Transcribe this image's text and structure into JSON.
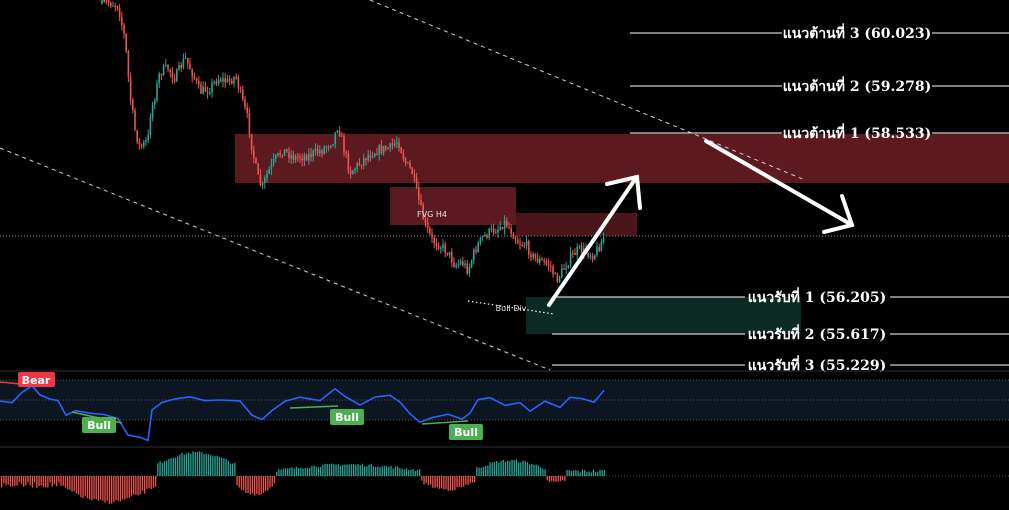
{
  "chart_data": {
    "type": "candlestick",
    "resistance_levels": [
      {
        "label": "แนวต้านที่ 3 (60.023)",
        "value": 60.023
      },
      {
        "label": "แนวต้านที่ 2 (59.278)",
        "value": 59.278
      },
      {
        "label": "แนวต้านที่ 1 (58.533)",
        "value": 58.533
      }
    ],
    "support_levels": [
      {
        "label": "แนวรับที่ 1 (56.205)",
        "value": 56.205
      },
      {
        "label": "แนวรับที่ 2 (55.617)",
        "value": 55.617
      },
      {
        "label": "แนวรับที่ 3 (55.229)",
        "value": 55.229
      }
    ],
    "annotations": {
      "fvg": "FVG H4",
      "divergence": "Bull Div"
    },
    "oscillator": {
      "badges": [
        "Bear",
        "Bull",
        "Bull",
        "Bull"
      ]
    },
    "colors": {
      "bull": "#26a69a",
      "bear": "#ef5350",
      "resistance_zone": "#5c1a1f",
      "support_zone": "#0b2a24",
      "rsi_line": "#2962ff",
      "bear_badge": "#f23645",
      "bull_badge": "#4caf50"
    }
  }
}
